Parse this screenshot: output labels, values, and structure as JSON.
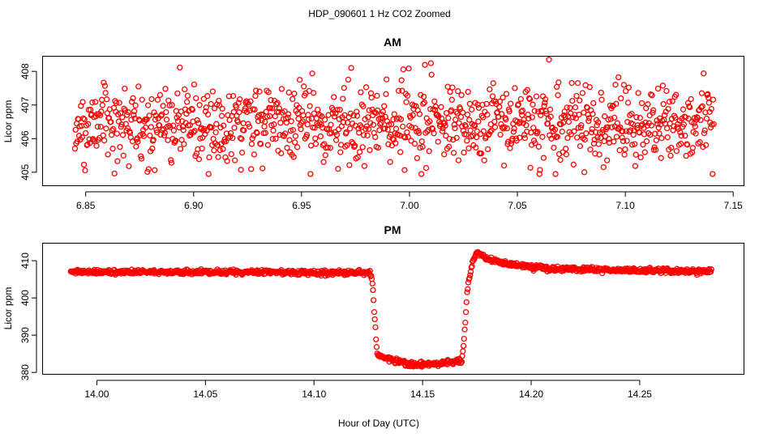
{
  "figure": {
    "title": "HDP_090601  1 Hz CO2 Zoomed",
    "xlabel": "Hour of Day (UTC)",
    "point_color": "#ff0000"
  },
  "chart_data": [
    {
      "type": "scatter",
      "title": "AM",
      "xlabel": "",
      "ylabel": "Licor ppm",
      "xlim": [
        6.83,
        7.155
      ],
      "ylim": [
        404.6,
        408.45
      ],
      "xticks": [
        6.85,
        6.9,
        6.95,
        7.0,
        7.05,
        7.1,
        7.15
      ],
      "xtick_labels": [
        "6.85",
        "6.90",
        "6.95",
        "7.00",
        "7.05",
        "7.10",
        "7.15"
      ],
      "yticks": [
        405,
        406,
        407,
        408
      ],
      "ytick_labels": [
        "405",
        "406",
        "407",
        "408"
      ],
      "x_start": 6.845,
      "x_end": 7.141,
      "n_points": 1067,
      "y_mean": 406.45,
      "y_spread": 0.6,
      "y_min": 404.95,
      "y_max": 408.35
    },
    {
      "type": "scatter",
      "title": "PM",
      "xlabel": "Hour of Day (UTC)",
      "ylabel": "Licor ppm",
      "xlim": [
        13.975,
        14.298
      ],
      "ylim": [
        379.5,
        414.7
      ],
      "xticks": [
        14.0,
        14.05,
        14.1,
        14.15,
        14.2,
        14.25
      ],
      "xtick_labels": [
        "14.00",
        "14.05",
        "14.10",
        "14.15",
        "14.20",
        "14.25"
      ],
      "yticks": [
        380,
        390,
        400,
        410
      ],
      "ytick_labels": [
        "380",
        "390",
        "400",
        "410"
      ],
      "x_start": 13.988,
      "x_end": 14.283,
      "n_points": 1063,
      "segments": [
        {
          "x": 13.988,
          "y": 407.0
        },
        {
          "x": 14.126,
          "y": 406.8
        },
        {
          "x": 14.127,
          "y": 403.5
        },
        {
          "x": 14.128,
          "y": 394.0
        },
        {
          "x": 14.129,
          "y": 385.0
        },
        {
          "x": 14.135,
          "y": 383.5
        },
        {
          "x": 14.145,
          "y": 382.0
        },
        {
          "x": 14.16,
          "y": 382.5
        },
        {
          "x": 14.168,
          "y": 383.0
        },
        {
          "x": 14.169,
          "y": 388.0
        },
        {
          "x": 14.17,
          "y": 397.0
        },
        {
          "x": 14.171,
          "y": 404.0
        },
        {
          "x": 14.173,
          "y": 409.5
        },
        {
          "x": 14.175,
          "y": 412.2
        },
        {
          "x": 14.18,
          "y": 410.5
        },
        {
          "x": 14.19,
          "y": 409.0
        },
        {
          "x": 14.21,
          "y": 407.8
        },
        {
          "x": 14.283,
          "y": 407.0
        }
      ],
      "noise": 0.5
    }
  ]
}
